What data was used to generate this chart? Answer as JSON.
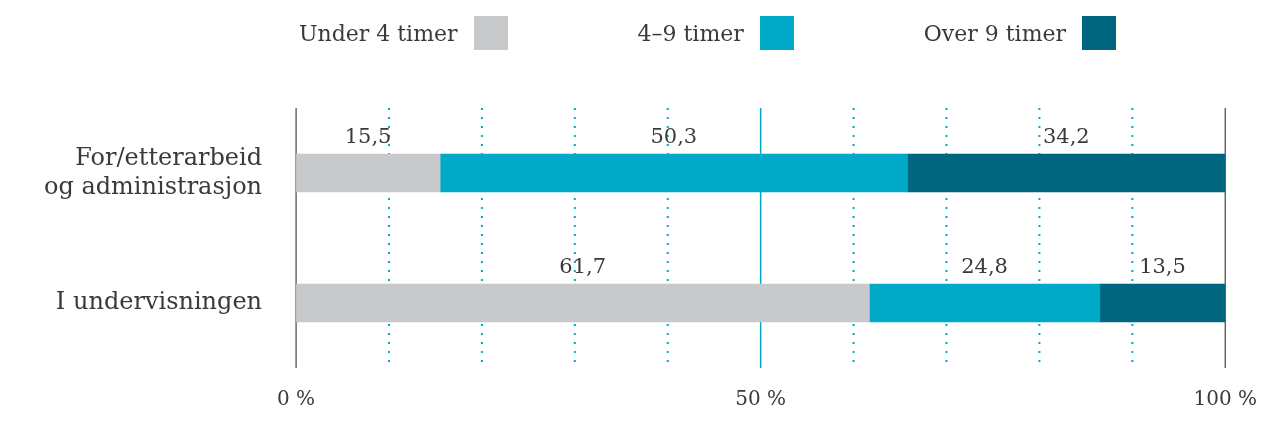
{
  "chart_data": {
    "type": "bar",
    "orientation": "horizontal",
    "stacked": true,
    "categories": [
      "For/etterarbeid og administrasjon",
      "I undervisningen"
    ],
    "series": [
      {
        "name": "Under 4 timer",
        "color": "#c8c9cb",
        "values": [
          15.5,
          61.7
        ],
        "value_labels": [
          "15,5",
          "61,7"
        ]
      },
      {
        "name": "4–9 timer",
        "color": "#00a9c8",
        "values": [
          50.3,
          24.8
        ],
        "value_labels": [
          "50,3",
          "24,8"
        ]
      },
      {
        "name": "Over 9 timer",
        "color": "#006680",
        "values": [
          34.2,
          13.5
        ],
        "value_labels": [
          "34,2",
          "13,5"
        ]
      }
    ],
    "xlim": [
      0,
      100
    ],
    "xticks": [
      {
        "value": 0,
        "label": "0 %"
      },
      {
        "value": 10,
        "label": null
      },
      {
        "value": 20,
        "label": null
      },
      {
        "value": 30,
        "label": null
      },
      {
        "value": 40,
        "label": null
      },
      {
        "value": 50,
        "label": "50 %"
      },
      {
        "value": 60,
        "label": null
      },
      {
        "value": 70,
        "label": null
      },
      {
        "value": 80,
        "label": null
      },
      {
        "value": 90,
        "label": null
      },
      {
        "value": 100,
        "label": "100 %"
      }
    ],
    "ref_lines": [
      {
        "axis": "x",
        "value": 50,
        "color": "#00a9c8"
      }
    ],
    "grid": "x",
    "legend": "top"
  }
}
